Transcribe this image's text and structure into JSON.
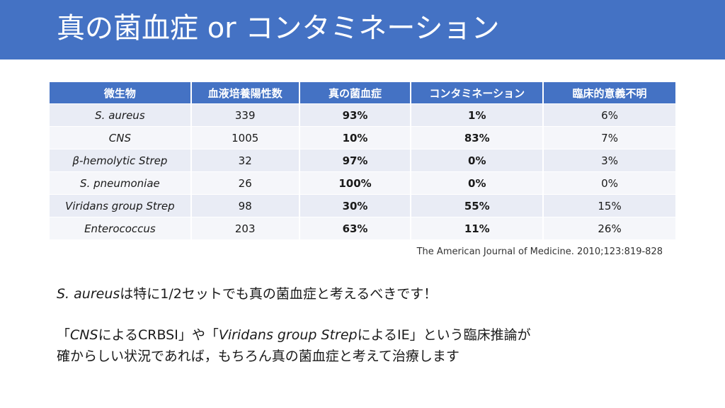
{
  "slide": {
    "title": "真の菌血症 or コンタミネーション"
  },
  "table": {
    "headers": [
      "微生物",
      "血液培養陽性数",
      "真の菌血症",
      "コンタミネーション",
      "臨床的意義不明"
    ],
    "rows": [
      {
        "organism": "S. aureus",
        "positives": "339",
        "true_bacteremia": "93%",
        "contamination": "1%",
        "unclear": "6%"
      },
      {
        "organism": "CNS",
        "positives": "1005",
        "true_bacteremia": "10%",
        "contamination": "83%",
        "unclear": "7%"
      },
      {
        "organism": "β-hemolytic Strep",
        "positives": "32",
        "true_bacteremia": "97%",
        "contamination": "0%",
        "unclear": "3%"
      },
      {
        "organism": "S. pneumoniae",
        "positives": "26",
        "true_bacteremia": "100%",
        "contamination": "0%",
        "unclear": "0%"
      },
      {
        "organism": "Viridans group Strep",
        "positives": "98",
        "true_bacteremia": "30%",
        "contamination": "55%",
        "unclear": "15%"
      },
      {
        "organism": "Enterococcus",
        "positives": "203",
        "true_bacteremia": "63%",
        "contamination": "11%",
        "unclear": "26%"
      }
    ]
  },
  "citation": "The American Journal of Medicine. 2010;123:819-828",
  "notes": {
    "line1": {
      "italic": "S. aureus",
      "rest": "は特に1/2セットでも真の菌血症と考えるべきです！"
    },
    "line2": {
      "open": "「",
      "italic1": "CNS",
      "mid1": "によるCRBSI」や「",
      "italic2": "Viridans group Strep",
      "mid2": "によるIE」という臨床推論が"
    },
    "line3": "確からしい状況であれば，もちろん真の菌血症と考えて治療します"
  },
  "colors": {
    "accent": "#4472c4",
    "row_odd": "#e9ecf5",
    "row_even": "#f5f6fa"
  }
}
